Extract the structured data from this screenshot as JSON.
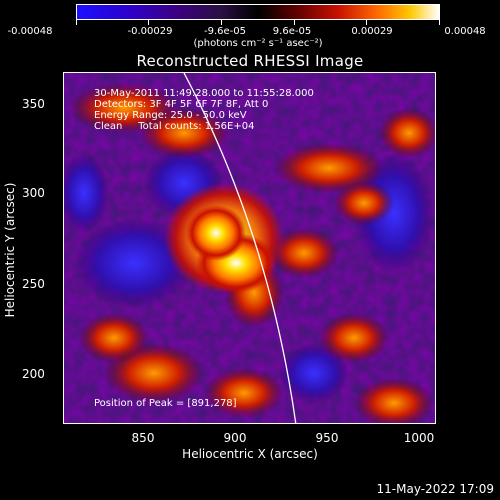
{
  "colorbar": {
    "tick_labels": [
      "-0.00048",
      "-0.00029",
      "-9.6e-05",
      "9.6e-05",
      "0.00029",
      "0.00048"
    ],
    "units_label": "(photons cm⁻² s⁻¹ asec⁻²)"
  },
  "title": "Reconstructed RHESSI Image",
  "overlay": {
    "time_range": "30-May-2011 11:49:28.000 to 11:55:28.000",
    "detectors": "Detectors: 3F 4F 5F 6F 7F 8F, Att 0",
    "energy": "Energy Range: 25.0 - 50.0 keV",
    "method": "Clean     Total counts: 1.56E+04",
    "peak": "Position of Peak = [891,278]"
  },
  "axes": {
    "xlabel": "Heliocentric X (arcsec)",
    "ylabel": "Heliocentric Y (arcsec)",
    "x_ticks": [
      "850",
      "900",
      "950",
      "1000"
    ],
    "y_ticks": [
      "350",
      "300",
      "250",
      "200"
    ],
    "xlim": [
      815,
      1005
    ],
    "ylim": [
      172,
      368
    ]
  },
  "image_data": {
    "peak_position": [
      891,
      278
    ],
    "colormap_range": [
      -0.00048,
      0.00048
    ],
    "limb_visible": true
  },
  "timestamp": "11-May-2022 17:09"
}
